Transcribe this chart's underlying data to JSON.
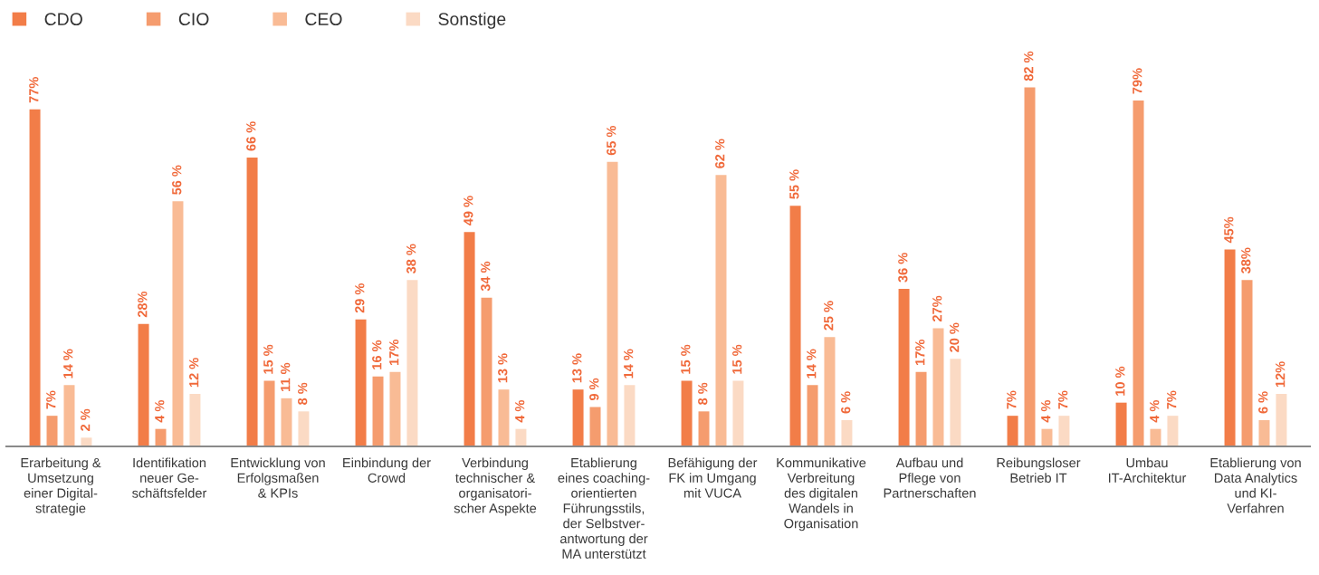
{
  "chart_data": {
    "type": "bar",
    "categories": [
      "Erarbeitung &\nUmsetzung\neiner Digital-\nstrategie",
      "Identifikation\nneuer Ge-\nschäftsfelder",
      "Entwicklung von\nErfolgsmaßen\n& KPIs",
      "Einbindung der\nCrowd",
      "Verbindung\ntechnischer &\norganisatori-\nscher Aspekte",
      "Etablierung\neines coaching-\norientierten\nFührungsstils,\nder Selbstver-\nantwortung der\nMA unterstützt",
      "Befähigung der\nFK im Umgang\nmit VUCA",
      "Kommunikative\nVerbreitung\ndes digitalen\nWandels in\nOrganisation",
      "Aufbau und\nPflege von\nPartnerschaften",
      "Reibungsloser\nBetrieb IT",
      "Umbau\nIT-Architektur",
      "Etablierung von\nData Analytics\nund KI-\nVerfahren"
    ],
    "series": [
      {
        "name": "CDO",
        "color": "#f27d48",
        "values": [
          77,
          28,
          66,
          29,
          49,
          13,
          15,
          55,
          36,
          7,
          10,
          45
        ],
        "value_labels": [
          "77%",
          "28%",
          "66 %",
          "29 %",
          "49 %",
          "13 %",
          "15 %",
          "55 %",
          "36 %",
          "7%",
          "10 %",
          "45%"
        ]
      },
      {
        "name": "CIO",
        "color": "#f59c6e",
        "values": [
          7,
          4,
          15,
          16,
          34,
          9,
          8,
          14,
          17,
          82,
          79,
          38
        ],
        "value_labels": [
          "7%",
          "4 %",
          "15 %",
          "16 %",
          "34 %",
          "9 %",
          "8 %",
          "14 %",
          "17%",
          "82 %",
          "79%",
          "38%"
        ]
      },
      {
        "name": "CEO",
        "color": "#f9bb95",
        "values": [
          14,
          56,
          11,
          17,
          13,
          65,
          62,
          25,
          27,
          4,
          4,
          6
        ],
        "value_labels": [
          "14 %",
          "56 %",
          "11 %",
          "17%",
          "13 %",
          "65 %",
          "62 %",
          "25 %",
          "27%",
          "4 %",
          "4 %",
          "6 %"
        ]
      },
      {
        "name": "Sonstige",
        "color": "#fbdac4",
        "values": [
          2,
          12,
          8,
          38,
          4,
          14,
          15,
          6,
          20,
          7,
          7,
          12
        ],
        "value_labels": [
          "2 %",
          "12 %",
          "8 %",
          "38 %",
          "4 %",
          "14 %",
          "15 %",
          "6 %",
          "20 %",
          "7%",
          "7%",
          "12%"
        ]
      }
    ],
    "legend": "top left",
    "tick_labels": "x",
    "grid": false
  }
}
